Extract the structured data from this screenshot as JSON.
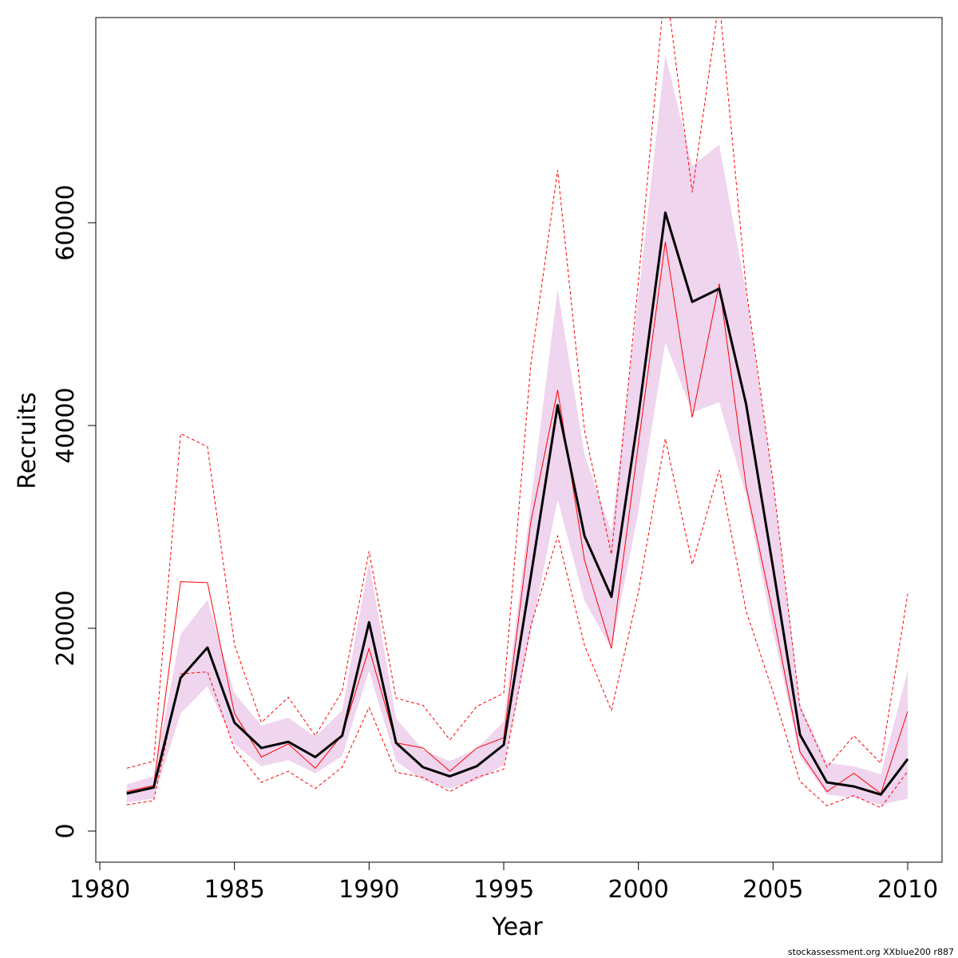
{
  "chart_data": {
    "type": "line",
    "xlabel": "Year",
    "ylabel": "Recruits",
    "xlim": [
      1980,
      2010
    ],
    "ylim": [
      0,
      80000
    ],
    "x_ticks": [
      "1980",
      "1985",
      "1990",
      "1995",
      "2000",
      "2005",
      "2010"
    ],
    "y_ticks": [
      "0",
      "20000",
      "40000",
      "60000"
    ],
    "grid": false,
    "legend": "none",
    "footer": "stockassessment.org XXblue200 r887",
    "colors": {
      "band": "#efd5ee",
      "estimate": "#000000",
      "comparison": "#ff0000"
    },
    "x": [
      1981,
      1982,
      1983,
      1984,
      1985,
      1986,
      1987,
      1988,
      1989,
      1990,
      1991,
      1992,
      1993,
      1994,
      1995,
      1996,
      1997,
      1998,
      1999,
      2000,
      2001,
      2002,
      2003,
      2004,
      2005,
      2006,
      2007,
      2008,
      2009,
      2010
    ],
    "series": [
      {
        "values": [
          3700,
          4300,
          15100,
          18100,
          10700,
          8200,
          8800,
          7300,
          9400,
          20600,
          8700,
          6300,
          5400,
          6400,
          8500,
          25000,
          42000,
          29100,
          23100,
          41000,
          61000,
          52200,
          53500,
          42100,
          26000,
          9500,
          4800,
          4400,
          3600,
          7100
        ],
        "lower": [
          2800,
          3200,
          11600,
          14300,
          8600,
          6400,
          7000,
          5700,
          7400,
          15800,
          6900,
          5000,
          4200,
          5000,
          6500,
          19500,
          32700,
          22700,
          18000,
          31500,
          48200,
          41300,
          42300,
          33100,
          19700,
          7300,
          3600,
          3300,
          2600,
          3200
        ],
        "upper": [
          4600,
          5400,
          19400,
          22800,
          13600,
          10400,
          11200,
          9300,
          11900,
          26500,
          11100,
          8000,
          6900,
          8100,
          10800,
          32300,
          53400,
          37100,
          29500,
          52700,
          76600,
          65600,
          67700,
          53100,
          34300,
          12500,
          6700,
          6400,
          5600,
          15800
        ]
      },
      {
        "values": [
          3900,
          4500,
          24600,
          24500,
          11600,
          7300,
          8600,
          6200,
          9500,
          18000,
          8700,
          8200,
          5900,
          8200,
          9200,
          30400,
          43500,
          26700,
          18000,
          38200,
          58100,
          40800,
          54000,
          34000,
          21500,
          7800,
          3900,
          5700,
          3700,
          11800
        ],
        "lower": [
          2600,
          3000,
          15500,
          15700,
          8100,
          4800,
          5900,
          4200,
          6300,
          12200,
          5800,
          5300,
          3900,
          5300,
          6100,
          20200,
          29100,
          18300,
          11900,
          23600,
          38700,
          26300,
          35600,
          21700,
          13700,
          4900,
          2500,
          3500,
          2300,
          5900
        ],
        "upper": [
          6200,
          6900,
          39200,
          37900,
          18400,
          10700,
          13200,
          9400,
          13800,
          27600,
          13100,
          12400,
          9000,
          12300,
          13600,
          45900,
          65200,
          39500,
          27300,
          54200,
          84000,
          63000,
          82000,
          53500,
          34500,
          12200,
          6300,
          9400,
          6700,
          23400
        ]
      }
    ]
  }
}
